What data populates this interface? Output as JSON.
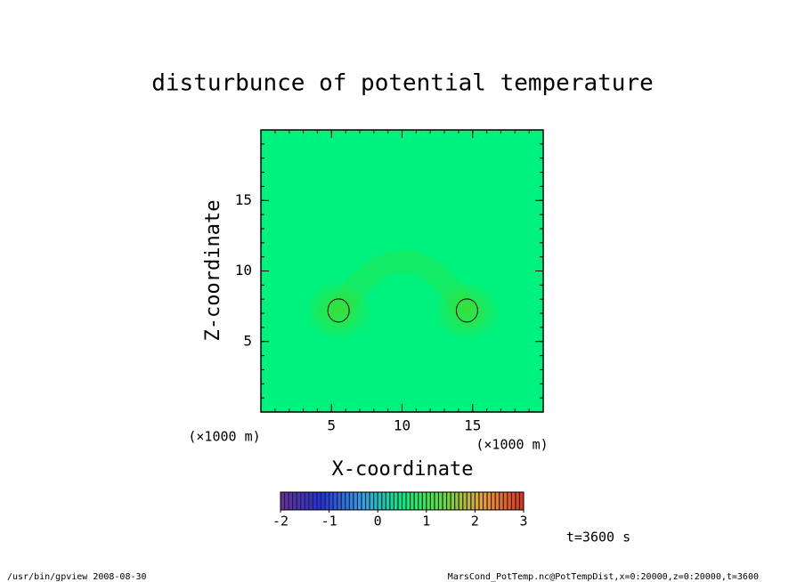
{
  "chart_data": {
    "type": "heatmap",
    "title": "disturbunce of potential temperature",
    "xlabel": "X-coordinate",
    "ylabel": "Z-coordinate",
    "xunit": "(×1000 m)",
    "yunit": "(×1000 m)",
    "xlim": [
      0,
      20
    ],
    "ylim": [
      0,
      20
    ],
    "xticks": [
      5,
      10,
      15
    ],
    "yticks": [
      5,
      10,
      15
    ],
    "minor_tick_step": 1,
    "background_color": "#00f27e",
    "contours": {
      "x": [
        5.5,
        14.6
      ],
      "y": [
        7.2,
        7.2
      ],
      "color": "#30e040"
    },
    "colorbar": {
      "lim": [
        -2,
        3
      ],
      "ticks": [
        -2,
        -1,
        0,
        1,
        2,
        3
      ],
      "colors": [
        "#6a2fa0",
        "#2030e0",
        "#30a0f0",
        "#00f080",
        "#60e040",
        "#f0a030",
        "#e03020"
      ]
    },
    "annotation": "t=3600 s",
    "footer_left": "/usr/bin/gpview   2008-08-30",
    "footer_right": "MarsCond_PotTemp.nc@PotTempDist,x=0:20000,z=0:20000,t=3600"
  }
}
